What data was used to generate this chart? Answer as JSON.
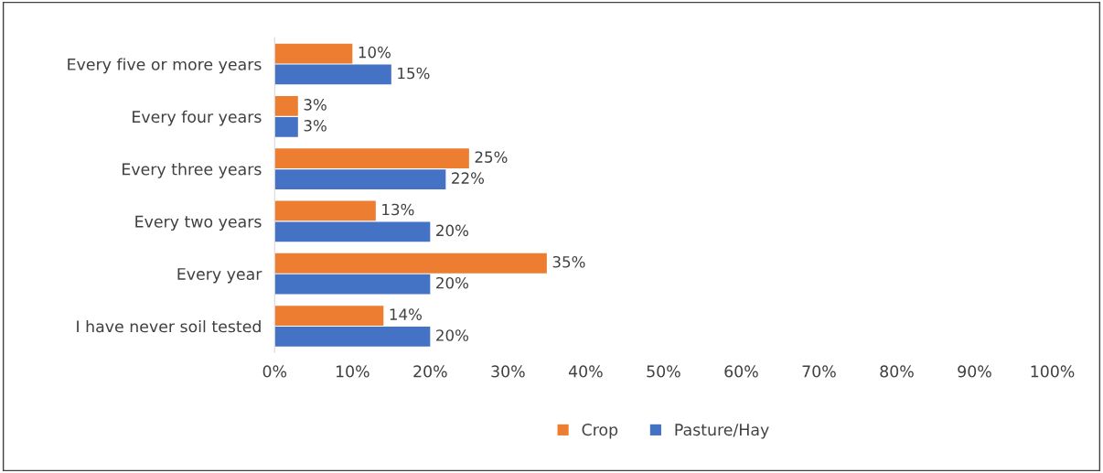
{
  "chart_data": {
    "type": "bar",
    "orientation": "horizontal",
    "categories": [
      "Every five or more years",
      "Every four years",
      "Every three years",
      "Every two years",
      "Every year",
      "I have never soil tested"
    ],
    "series": [
      {
        "name": "Crop",
        "color": "#ed7d31",
        "values": [
          10,
          3,
          25,
          13,
          35,
          14
        ],
        "value_labels": [
          "10%",
          "3%",
          "25%",
          "13%",
          "35%",
          "14%"
        ]
      },
      {
        "name": "Pasture/Hay",
        "color": "#4472c4",
        "values": [
          15,
          3,
          22,
          20,
          20,
          20
        ],
        "value_labels": [
          "15%",
          "3%",
          "22%",
          "20%",
          "20%",
          "20%"
        ]
      }
    ],
    "xlim": [
      0,
      100
    ],
    "xticks": [
      {
        "value": 0,
        "label": "0%"
      },
      {
        "value": 10,
        "label": "10%"
      },
      {
        "value": 20,
        "label": "20%"
      },
      {
        "value": 30,
        "label": "30%"
      },
      {
        "value": 40,
        "label": "40%"
      },
      {
        "value": 50,
        "label": "50%"
      },
      {
        "value": 60,
        "label": "60%"
      },
      {
        "value": 70,
        "label": "70%"
      },
      {
        "value": 80,
        "label": "80%"
      },
      {
        "value": 90,
        "label": "90%"
      },
      {
        "value": 100,
        "label": "100%"
      }
    ],
    "legend": "bottom",
    "grid": false
  }
}
